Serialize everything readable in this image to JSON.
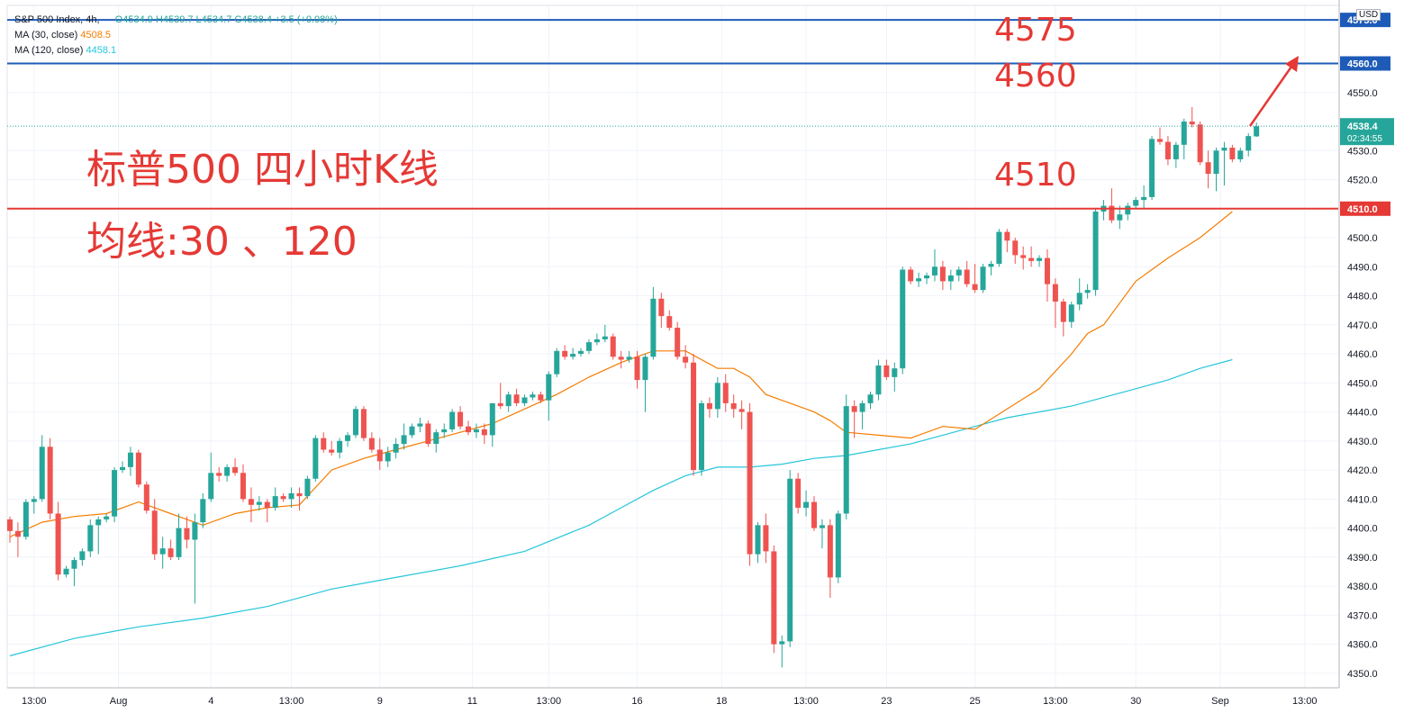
{
  "legend": {
    "symbol": "S&P 500 Index, 4h,",
    "ohlc": "O4534.9  H4539.7  L4534.7  C4538.4  +3.5 (+0.08%)",
    "ma30_label": "MA (30, close)",
    "ma30_value": "4508.5",
    "ma120_label": "MA (120, close)",
    "ma120_value": "4458.1"
  },
  "annotations": {
    "title": "标普500 四小时K线",
    "subtitle": "均线:30 、120",
    "level_4575": "4575",
    "level_4560": "4560",
    "level_4510": "4510"
  },
  "currency": "USD",
  "colors": {
    "up": "#26a69a",
    "down": "#ef5350",
    "ma30": "#f57c00",
    "ma120": "#26c6da",
    "line_blue": "#1e5bb8",
    "line_red": "#e53935",
    "arrow": "#e53935"
  },
  "chart_data": {
    "type": "candlestick",
    "ylim": [
      4345,
      4580
    ],
    "y_ticks": [
      4350,
      4360,
      4370,
      4380,
      4390,
      4400,
      4410,
      4420,
      4430,
      4440,
      4450,
      4460,
      4470,
      4480,
      4490,
      4500,
      4510,
      4520,
      4530,
      4550
    ],
    "x_tick_labels": [
      "13:00",
      "Aug",
      "4",
      "13:00",
      "9",
      "11",
      "13:00",
      "16",
      "18",
      "13:00",
      "23",
      "25",
      "13:00",
      "30",
      "Sep",
      "13:00"
    ],
    "x_tick_positions": [
      3.0,
      13.5,
      25.0,
      35.0,
      46.0,
      57.5,
      67.0,
      78.0,
      88.5,
      99.0,
      109.0,
      120.0,
      130.0,
      140.0,
      150.5,
      161.0
    ],
    "price_lines": [
      {
        "name": "4575",
        "value": 4575.0,
        "label": "4575.0",
        "color": "#1e5bb8"
      },
      {
        "name": "4560",
        "value": 4560.0,
        "label": "4560.0",
        "color": "#1e5bb8"
      },
      {
        "name": "4510",
        "value": 4510.0,
        "label": "4510.0",
        "color": "#e53935"
      }
    ],
    "last_price": {
      "label": "4538.4",
      "countdown": "02:34:55",
      "value": 4538.4
    },
    "candles": [
      [
        4403,
        4404,
        4395,
        4399
      ],
      [
        4399,
        4402,
        4390,
        4397
      ],
      [
        4397,
        4410,
        4396,
        4409
      ],
      [
        4409,
        4411,
        4405,
        4410
      ],
      [
        4410,
        4432,
        4409,
        4428
      ],
      [
        4428,
        4431,
        4403,
        4405
      ],
      [
        4405,
        4409,
        4382,
        4384
      ],
      [
        4384,
        4387,
        4383,
        4386
      ],
      [
        4386,
        4390,
        4380,
        4389
      ],
      [
        4389,
        4393,
        4387,
        4392
      ],
      [
        4392,
        4403,
        4390,
        4401
      ],
      [
        4401,
        4404,
        4391,
        4403
      ],
      [
        4403,
        4405,
        4402,
        4404
      ],
      [
        4404,
        4421,
        4402,
        4420
      ],
      [
        4420,
        4423,
        4419,
        4421
      ],
      [
        4421,
        4428,
        4418,
        4426
      ],
      [
        4426,
        4427,
        4414,
        4415
      ],
      [
        4415,
        4416,
        4405,
        4406
      ],
      [
        4406,
        4410,
        4389,
        4391
      ],
      [
        4391,
        4397,
        4386,
        4393
      ],
      [
        4393,
        4396,
        4389,
        4390
      ],
      [
        4390,
        4405,
        4389,
        4400
      ],
      [
        4400,
        4404,
        4393,
        4396
      ],
      [
        4396,
        4405,
        4374,
        4402
      ],
      [
        4402,
        4412,
        4400,
        4410
      ],
      [
        4410,
        4426,
        4409,
        4419
      ],
      [
        4419,
        4421,
        4416,
        4418
      ],
      [
        4418,
        4422,
        4416,
        4421
      ],
      [
        4421,
        4424,
        4418,
        4419
      ],
      [
        4419,
        4422,
        4409,
        4410
      ],
      [
        4410,
        4414,
        4402,
        4408
      ],
      [
        4408,
        4411,
        4406,
        4409
      ],
      [
        4409,
        4410,
        4402,
        4407
      ],
      [
        4407,
        4414,
        4406,
        4411
      ],
      [
        4411,
        4412,
        4409,
        4410
      ],
      [
        4410,
        4414,
        4407,
        4412
      ],
      [
        4412,
        4414,
        4406,
        4411
      ],
      [
        4411,
        4418,
        4410,
        4417
      ],
      [
        4417,
        4432,
        4416,
        4431
      ],
      [
        4431,
        4433,
        4426,
        4427
      ],
      [
        4427,
        4430,
        4425,
        4426
      ],
      [
        4426,
        4431,
        4424,
        4430
      ],
      [
        4430,
        4433,
        4428,
        4432
      ],
      [
        4432,
        4442,
        4431,
        4441
      ],
      [
        4441,
        4442,
        4430,
        4431
      ],
      [
        4431,
        4433,
        4426,
        4427
      ],
      [
        4427,
        4431,
        4420,
        4423
      ],
      [
        4423,
        4428,
        4421,
        4426
      ],
      [
        4426,
        4431,
        4424,
        4429
      ],
      [
        4429,
        4436,
        4427,
        4432
      ],
      [
        4432,
        4436,
        4431,
        4435
      ],
      [
        4435,
        4438,
        4433,
        4436
      ],
      [
        4436,
        4437,
        4428,
        4429
      ],
      [
        4429,
        4434,
        4426,
        4433
      ],
      [
        4433,
        4436,
        4431,
        4434
      ],
      [
        4434,
        4441,
        4433,
        4440
      ],
      [
        4440,
        4442,
        4434,
        4435
      ],
      [
        4435,
        4437,
        4432,
        4433
      ],
      [
        4433,
        4436,
        4431,
        4434
      ],
      [
        4434,
        4436,
        4429,
        4432
      ],
      [
        4432,
        4443,
        4428,
        4443
      ],
      [
        4443,
        4450,
        4441,
        4442
      ],
      [
        4442,
        4447,
        4440,
        4446
      ],
      [
        4446,
        4448,
        4442,
        4443
      ],
      [
        4443,
        4446,
        4442,
        4445
      ],
      [
        4445,
        4447,
        4444,
        4446
      ],
      [
        4446,
        4447,
        4443,
        4444
      ],
      [
        4444,
        4454,
        4437,
        4453
      ],
      [
        4453,
        4462,
        4452,
        4461
      ],
      [
        4461,
        4463,
        4458,
        4459
      ],
      [
        4459,
        4462,
        4458,
        4460
      ],
      [
        4460,
        4462,
        4459,
        4461
      ],
      [
        4461,
        4465,
        4460,
        4464
      ],
      [
        4464,
        4467,
        4463,
        4465
      ],
      [
        4465,
        4470,
        4464,
        4466
      ],
      [
        4466,
        4467,
        4458,
        4459
      ],
      [
        4459,
        4461,
        4455,
        4458
      ],
      [
        4458,
        4461,
        4457,
        4459
      ],
      [
        4459,
        4461,
        4448,
        4451
      ],
      [
        4451,
        4460,
        4440,
        4459
      ],
      [
        4459,
        4483,
        4458,
        4479
      ],
      [
        4479,
        4481,
        4469,
        4473
      ],
      [
        4473,
        4475,
        4468,
        4469
      ],
      [
        4469,
        4471,
        4458,
        4459
      ],
      [
        4459,
        4463,
        4455,
        4457
      ],
      [
        4457,
        4460,
        4418,
        4420
      ],
      [
        4420,
        4444,
        4418,
        4443
      ],
      [
        4443,
        4445,
        4438,
        4441
      ],
      [
        4441,
        4452,
        4438,
        4450
      ],
      [
        4450,
        4453,
        4440,
        4443
      ],
      [
        4443,
        4446,
        4438,
        4441
      ],
      [
        4441,
        4444,
        4434,
        4440
      ],
      [
        4440,
        4443,
        4387,
        4391
      ],
      [
        4391,
        4402,
        4388,
        4401
      ],
      [
        4401,
        4405,
        4388,
        4392
      ],
      [
        4392,
        4394,
        4357,
        4360
      ],
      [
        4360,
        4363,
        4352,
        4361
      ],
      [
        4361,
        4420,
        4359,
        4417
      ],
      [
        4417,
        4419,
        4405,
        4407
      ],
      [
        4407,
        4413,
        4404,
        4409
      ],
      [
        4409,
        4411,
        4399,
        4400
      ],
      [
        4400,
        4403,
        4393,
        4401
      ],
      [
        4401,
        4403,
        4376,
        4383
      ],
      [
        4383,
        4406,
        4381,
        4405
      ],
      [
        4405,
        4446,
        4403,
        4442
      ],
      [
        4442,
        4444,
        4431,
        4440
      ],
      [
        4440,
        4444,
        4434,
        4443
      ],
      [
        4443,
        4447,
        4441,
        4446
      ],
      [
        4446,
        4458,
        4444,
        4456
      ],
      [
        4456,
        4458,
        4451,
        4452
      ],
      [
        4452,
        4457,
        4447,
        4455
      ],
      [
        4455,
        4490,
        4453,
        4489
      ],
      [
        4489,
        4490,
        4484,
        4485
      ],
      [
        4485,
        4488,
        4483,
        4486
      ],
      [
        4486,
        4488,
        4484,
        4487
      ],
      [
        4487,
        4496,
        4485,
        4490
      ],
      [
        4490,
        4492,
        4482,
        4485
      ],
      [
        4485,
        4489,
        4482,
        4487
      ],
      [
        4487,
        4490,
        4485,
        4489
      ],
      [
        4489,
        4492,
        4483,
        4484
      ],
      [
        4484,
        4491,
        4481,
        4482
      ],
      [
        4482,
        4491,
        4481,
        4490
      ],
      [
        4490,
        4492,
        4487,
        4491
      ],
      [
        4491,
        4503,
        4490,
        4502
      ],
      [
        4502,
        4503,
        4495,
        4499
      ],
      [
        4499,
        4500,
        4491,
        4494
      ],
      [
        4494,
        4497,
        4489,
        4493
      ],
      [
        4493,
        4497,
        4490,
        4492
      ],
      [
        4492,
        4494,
        4490,
        4493
      ],
      [
        4493,
        4496,
        4478,
        4484
      ],
      [
        4484,
        4486,
        4469,
        4478
      ],
      [
        4478,
        4479,
        4466,
        4471
      ],
      [
        4471,
        4478,
        4469,
        4477
      ],
      [
        4477,
        4486,
        4475,
        4481
      ],
      [
        4481,
        4484,
        4479,
        4482
      ],
      [
        4482,
        4510,
        4480,
        4509
      ],
      [
        4509,
        4513,
        4506,
        4511
      ],
      [
        4511,
        4517,
        4505,
        4506
      ],
      [
        4506,
        4511,
        4503,
        4508
      ],
      [
        4508,
        4512,
        4506,
        4511
      ],
      [
        4511,
        4514,
        4510,
        4513
      ],
      [
        4513,
        4518,
        4510,
        4514
      ],
      [
        4514,
        4535,
        4513,
        4534
      ],
      [
        4534,
        4538,
        4532,
        4533
      ],
      [
        4533,
        4535,
        4525,
        4527
      ],
      [
        4527,
        4533,
        4524,
        4532
      ],
      [
        4532,
        4541,
        4527,
        4540
      ],
      [
        4540,
        4545,
        4538,
        4539
      ],
      [
        4539,
        4540,
        4525,
        4526
      ],
      [
        4526,
        4530,
        4517,
        4522
      ],
      [
        4522,
        4531,
        4516,
        4530
      ],
      [
        4530,
        4533,
        4518,
        4531
      ],
      [
        4531,
        4532,
        4526,
        4527
      ],
      [
        4527,
        4531,
        4526,
        4530
      ],
      [
        4530,
        4536,
        4528,
        4535
      ],
      [
        4534.9,
        4539.7,
        4534.7,
        4538.4
      ]
    ],
    "ma30_x": [
      0,
      4,
      8,
      12,
      16,
      20,
      24,
      28,
      32,
      36,
      40,
      44,
      48,
      52,
      56,
      60,
      64,
      68,
      72,
      76,
      80,
      84,
      88,
      90,
      92,
      94,
      96,
      98,
      100,
      102,
      104,
      108,
      112,
      116,
      120,
      124,
      128,
      132,
      134,
      136,
      140,
      144,
      148,
      152
    ],
    "ma30_y": [
      4397,
      4402,
      4404,
      4405,
      4409,
      4405,
      4401,
      4405,
      4407,
      4408,
      4420,
      4424,
      4427,
      4430,
      4433,
      4436,
      4441,
      4446,
      4452,
      4457,
      4461,
      4461,
      4455,
      4455,
      4452,
      4446,
      4444,
      4442,
      4440,
      4437,
      4433,
      4432,
      4431,
      4435,
      4434,
      4441,
      4448,
      4460,
      4467,
      4470,
      4485,
      4493,
      4500,
      4509
    ],
    "ma120_x": [
      0,
      8,
      16,
      24,
      32,
      40,
      48,
      56,
      64,
      72,
      76,
      80,
      84,
      88,
      92,
      96,
      100,
      104,
      108,
      112,
      116,
      120,
      124,
      128,
      132,
      136,
      140,
      144,
      148,
      152
    ],
    "ma120_y": [
      4356,
      4362,
      4366,
      4369,
      4373,
      4379,
      4383,
      4387,
      4392,
      4401,
      4407,
      4413,
      4418,
      4421,
      4421,
      4422,
      4424,
      4425,
      4427,
      4429,
      4432,
      4435,
      4438,
      4440,
      4442,
      4445,
      4448,
      4451,
      4455,
      4458
    ]
  }
}
